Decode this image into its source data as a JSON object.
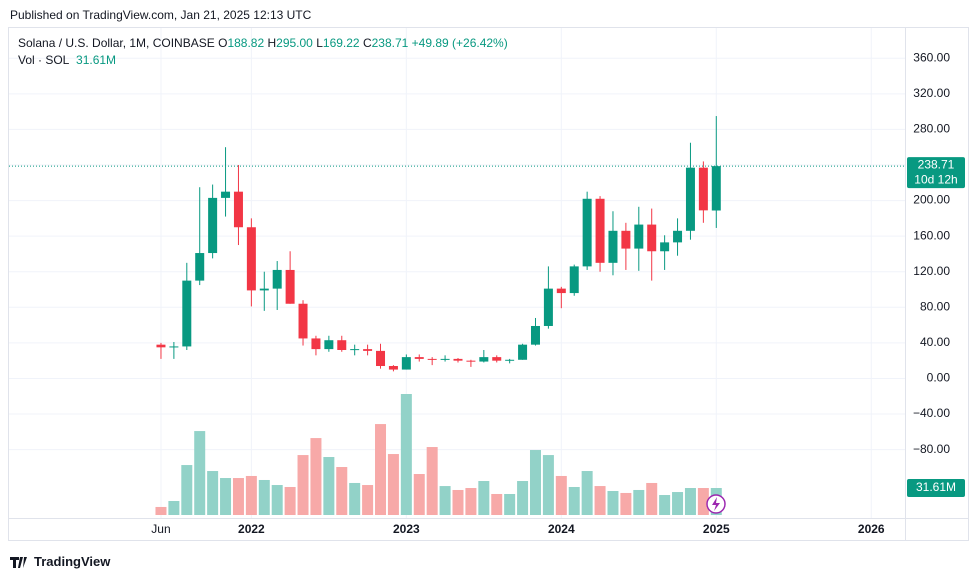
{
  "header": "Published on TradingView.com, Jan 21, 2025 12:13 UTC",
  "footer": "TradingView",
  "chart_data": {
    "type": "candlestick",
    "title": "Solana / U.S. Dollar, 1M, COINBASE",
    "ohlc_legend": [
      {
        "label": "O",
        "value": "188.82"
      },
      {
        "label": "H",
        "value": "295.00"
      },
      {
        "label": "L",
        "value": "169.22"
      },
      {
        "label": "C",
        "value": "238.71"
      }
    ],
    "change": "+49.89 (+26.42%)",
    "volume_title": "Vol · SOL",
    "volume_legend": "31.61M",
    "last_price_label": "238.71",
    "countdown": "10d 12h",
    "volume_label": "31.61M",
    "up_color": "#089981",
    "down_color": "#f23645",
    "up_volume_color": "#92d2c8",
    "down_volume_color": "#f7a9a8",
    "x": [
      "2021-06",
      "2021-07",
      "2021-08",
      "2021-09",
      "2021-10",
      "2021-11",
      "2021-12",
      "2022-01",
      "2022-02",
      "2022-03",
      "2022-04",
      "2022-05",
      "2022-06",
      "2022-07",
      "2022-08",
      "2022-09",
      "2022-10",
      "2022-11",
      "2022-12",
      "2023-01",
      "2023-02",
      "2023-03",
      "2023-04",
      "2023-05",
      "2023-06",
      "2023-07",
      "2023-08",
      "2023-09",
      "2023-10",
      "2023-11",
      "2023-12",
      "2024-01",
      "2024-02",
      "2024-03",
      "2024-04",
      "2024-05",
      "2024-06",
      "2024-07",
      "2024-08",
      "2024-09",
      "2024-10",
      "2024-11",
      "2024-12",
      "2025-01"
    ],
    "open": [
      38,
      35,
      36,
      110,
      141,
      203,
      210,
      170,
      99,
      101,
      122,
      84,
      45,
      33,
      43,
      32,
      33,
      31,
      14,
      10,
      24,
      22,
      21,
      22,
      20,
      19,
      24,
      20,
      21,
      38,
      59,
      101,
      96,
      126,
      202,
      130,
      166,
      146,
      173,
      143,
      153,
      166,
      237,
      188.82
    ],
    "high": [
      40,
      41,
      130,
      215,
      218,
      260,
      240,
      180,
      120,
      132,
      143,
      88,
      48,
      48,
      48,
      38,
      38,
      39,
      15,
      27,
      27,
      24,
      26,
      23,
      21,
      32,
      26,
      22,
      39,
      68,
      126,
      103,
      128,
      210,
      205,
      188,
      175,
      193,
      191,
      161,
      180,
      265,
      244,
      295
    ],
    "low": [
      22,
      22,
      32,
      105,
      135,
      182,
      150,
      81,
      76,
      77,
      84,
      37,
      26,
      30,
      30,
      26,
      26,
      11,
      8,
      10,
      19,
      15,
      19,
      18,
      13,
      18,
      18,
      17,
      21,
      37,
      56,
      79,
      93,
      122,
      120,
      116,
      122,
      121,
      110,
      122,
      138,
      156,
      175,
      169.22
    ],
    "close": [
      35,
      36,
      110,
      141,
      203,
      210,
      170,
      99,
      101,
      122,
      84,
      45,
      33,
      43,
      32,
      33,
      31,
      14,
      10,
      24,
      22,
      21,
      22,
      20,
      19,
      24,
      20,
      21,
      38,
      59,
      101,
      96,
      126,
      202,
      130,
      166,
      146,
      173,
      143,
      153,
      166,
      237,
      189,
      238.71
    ],
    "volume": [
      9.4,
      16.4,
      58.5,
      98.3,
      51.5,
      43.3,
      43.3,
      45.7,
      41,
      35.1,
      32.8,
      70.2,
      90.1,
      67.9,
      56.2,
      37.5,
      35.1,
      106.5,
      71.4,
      141.7,
      48,
      79.6,
      33.9,
      29.3,
      31.6,
      39.8,
      24.6,
      24.6,
      39.8,
      76.1,
      70.2,
      45.7,
      32.8,
      51.5,
      33.9,
      28.1,
      25.8,
      29.3,
      37.5,
      23.4,
      26.9,
      31.6,
      31.6,
      31.61
    ],
    "xlim": [
      "2020-06",
      "2026-04"
    ],
    "xticks": [
      {
        "value": "2021-06",
        "label": "Jun"
      },
      {
        "value": "2022-01",
        "label": "2022"
      },
      {
        "value": "2023-01",
        "label": "2023"
      },
      {
        "value": "2024-01",
        "label": "2024"
      },
      {
        "value": "2025-01",
        "label": "2025"
      },
      {
        "value": "2026-01",
        "label": "2026"
      }
    ],
    "ylim": [
      -153.5,
      394
    ],
    "yticks": [
      {
        "value": 360,
        "label": "360.00"
      },
      {
        "value": 320,
        "label": "320.00"
      },
      {
        "value": 280,
        "label": "280.00"
      },
      {
        "value": 240,
        "label": "240.00"
      },
      {
        "value": 200,
        "label": "200.00"
      },
      {
        "value": 160,
        "label": "160.00"
      },
      {
        "value": 120,
        "label": "120.00"
      },
      {
        "value": 80,
        "label": "80.00"
      },
      {
        "value": 40,
        "label": "40.00"
      },
      {
        "value": 0,
        "label": "0.00"
      },
      {
        "value": -40,
        "label": "−40.00"
      },
      {
        "value": -80,
        "label": "−80.00"
      }
    ],
    "grid": true
  }
}
